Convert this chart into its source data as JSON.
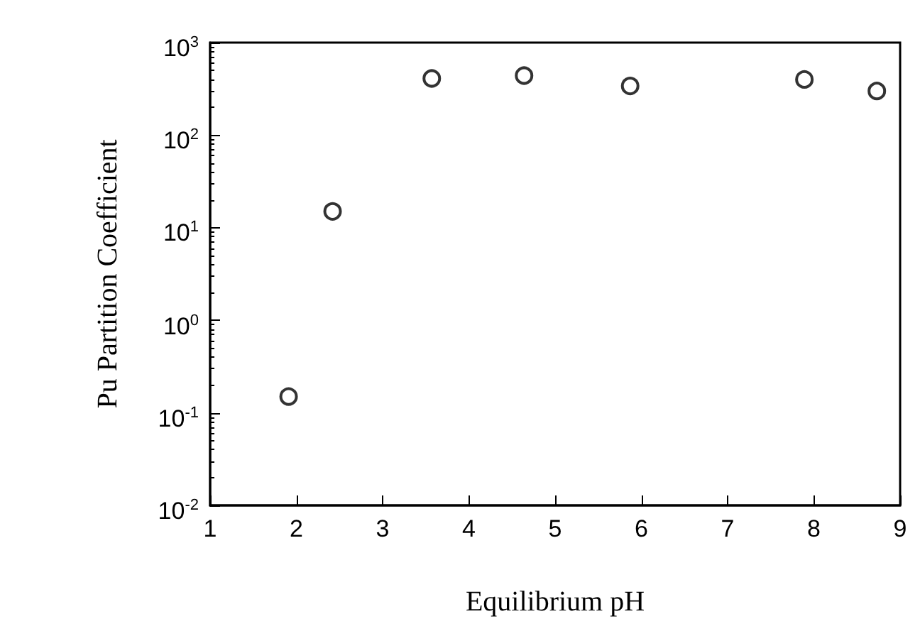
{
  "chart_data": {
    "type": "scatter",
    "xlabel": "Equilibrium pH",
    "ylabel": "Pu Partition Coefficient",
    "x": [
      1.91,
      2.42,
      3.57,
      4.64,
      5.87,
      7.89,
      8.73
    ],
    "values": [
      0.15,
      15,
      410,
      440,
      340,
      400,
      300
    ],
    "color": "#000000",
    "marker": "circle",
    "log": "y",
    "grid": false,
    "xlim": [
      1,
      9
    ],
    "xticks": [
      1,
      2,
      3,
      4,
      5,
      6,
      7,
      8,
      9
    ],
    "ylim": [
      0.01,
      1000
    ],
    "yticks": [
      {
        "value": 0.01,
        "label": "10$^{-2}$"
      },
      {
        "value": 0.1,
        "label": "10$^{-1}$"
      },
      {
        "value": 1,
        "label": "10$^{0}$"
      },
      {
        "value": 10,
        "label": "10$^{1}$"
      },
      {
        "value": 100,
        "label": "10$^{2}$"
      },
      {
        "value": 1000,
        "label": "10$^{3}$"
      }
    ]
  }
}
